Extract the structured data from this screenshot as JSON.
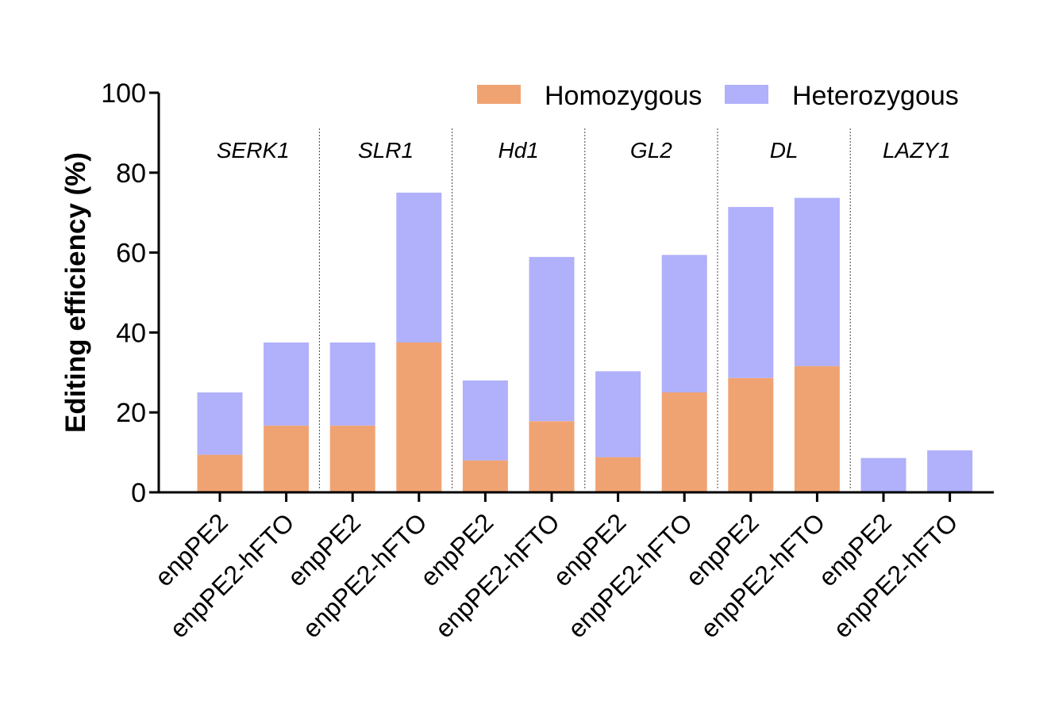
{
  "chart_data": {
    "type": "bar",
    "stacked": true,
    "title": "",
    "xlabel": "",
    "ylabel": "Editing efficiency (%)",
    "ylim": [
      0,
      100
    ],
    "yticks": [
      0,
      20,
      40,
      60,
      80,
      100
    ],
    "legend_position": "top-right",
    "categories": [
      "enpPE2",
      "enpPE2-hFTO",
      "enpPE2",
      "enpPE2-hFTO",
      "enpPE2",
      "enpPE2-hFTO",
      "enpPE2",
      "enpPE2-hFTO",
      "enpPE2",
      "enpPE2-hFTO",
      "enpPE2",
      "enpPE2-hFTO"
    ],
    "groups": [
      "SERK1",
      "SLR1",
      "Hd1",
      "GL2",
      "DL",
      "LAZY1"
    ],
    "series": [
      {
        "name": "Homozygous",
        "color": "#f0a372",
        "values": [
          9.4,
          16.7,
          16.7,
          37.5,
          8.0,
          17.8,
          8.8,
          25.0,
          28.6,
          31.6,
          0,
          0
        ]
      },
      {
        "name": "Heterozygous",
        "color": "#b0b0fb",
        "values": [
          15.6,
          20.8,
          20.8,
          37.5,
          20.0,
          41.1,
          21.5,
          34.4,
          42.8,
          42.1,
          8.6,
          10.5
        ]
      }
    ]
  }
}
